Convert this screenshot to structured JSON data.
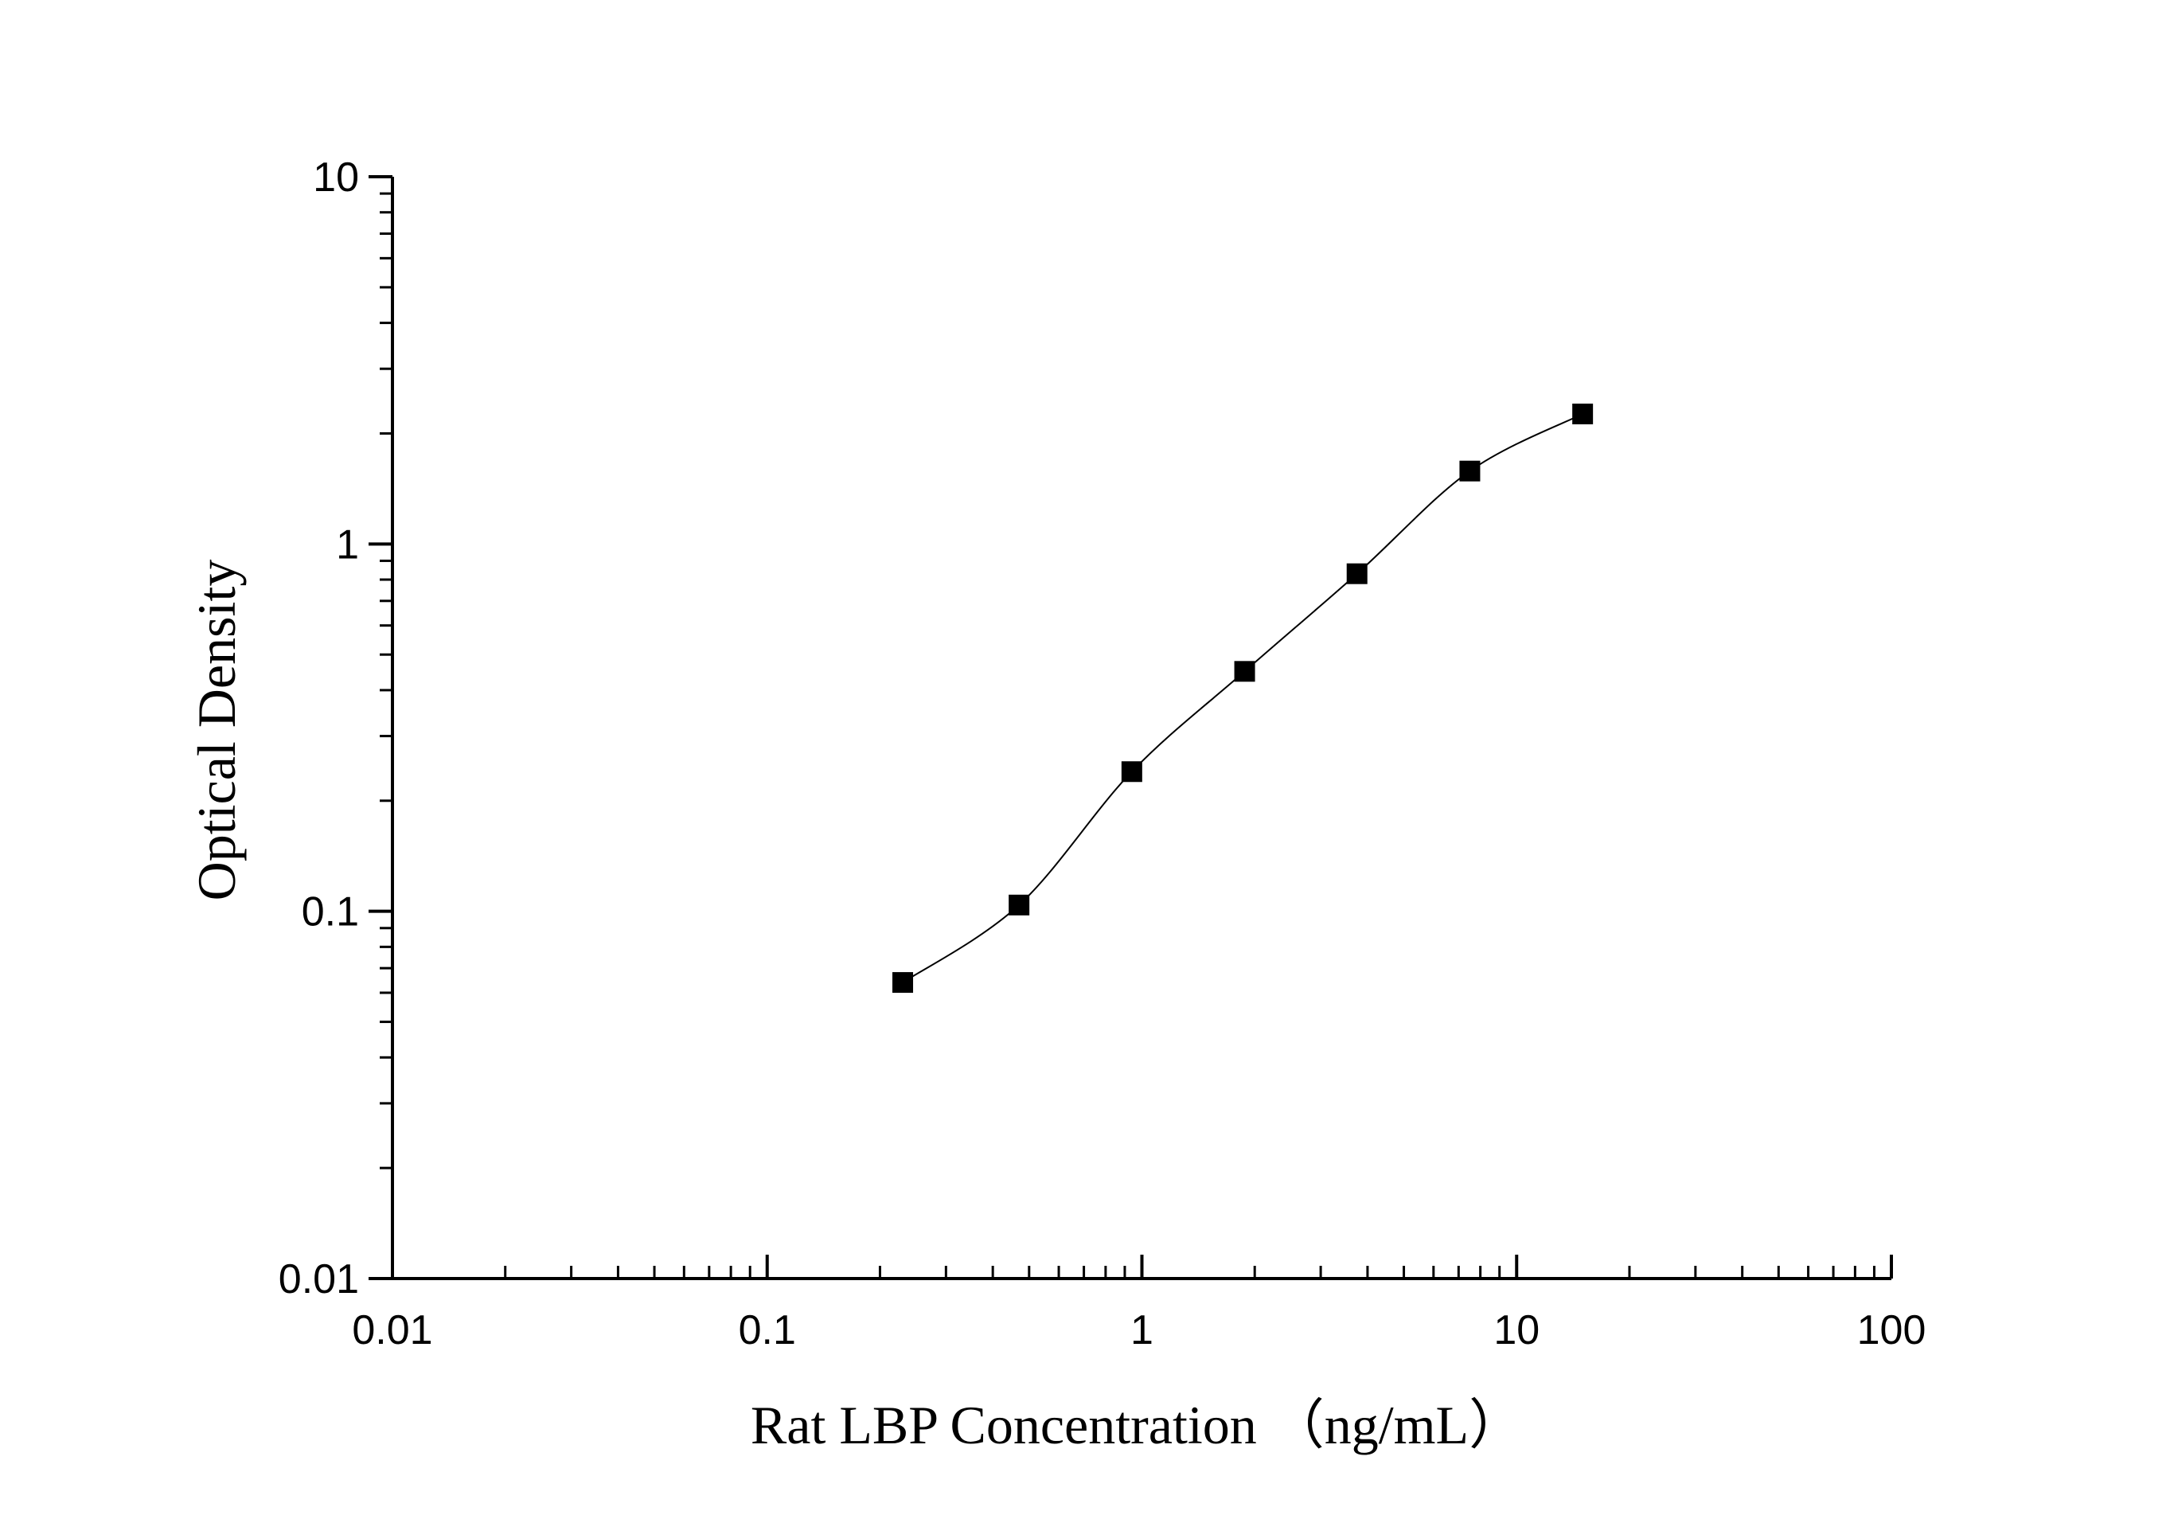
{
  "chart_data": {
    "type": "scatter",
    "xlabel": "Rat LBP Concentration （ng/mL）",
    "ylabel": "Optical Density",
    "xscale": "log",
    "yscale": "log",
    "xlim": [
      0.01,
      100
    ],
    "ylim": [
      0.01,
      10
    ],
    "x_ticks": [
      "0.01",
      "0.1",
      "1",
      "10",
      "100"
    ],
    "y_ticks": [
      "0.01",
      "0.1",
      "1",
      "10"
    ],
    "grid": false,
    "marker": "square",
    "line": "smooth fitted curve through points",
    "color": "#000000",
    "series": [
      {
        "x": [
          0.23,
          0.47,
          0.94,
          1.88,
          3.75,
          7.5,
          15
        ],
        "y": [
          0.064,
          0.104,
          0.24,
          0.45,
          0.83,
          1.58,
          2.26
        ]
      }
    ]
  }
}
